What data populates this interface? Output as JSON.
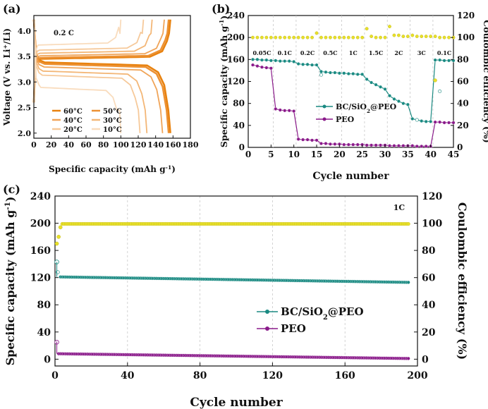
{
  "colors": {
    "bc": "#1a8a82",
    "peo": "#8a1a8a",
    "ce": "#e8e02a",
    "ce_edge": "#b8ae10",
    "grid": "#c8c8c8",
    "temps": {
      "60": "#e8820f",
      "50": "#ec9133",
      "40": "#f0a458",
      "30": "#f3b676",
      "20": "#f6c99a",
      "10": "#f9dcbd"
    }
  },
  "chart_data": [
    {
      "panel": "(a)",
      "type": "line",
      "xlabel": "Specific capacity (mAh g",
      "xlabel_sup": "-1",
      "xlabel_end": ")",
      "ylabel_parts": [
        "Voltage (V vs. Li",
        "+",
        "/Li)"
      ],
      "xlim": [
        0,
        180
      ],
      "ylim": [
        1.9,
        4.3
      ],
      "xticks": [
        "0",
        "20",
        "40",
        "60",
        "80",
        "100",
        "120",
        "140",
        "160",
        "180"
      ],
      "yticks": [
        "2.0",
        "2.5",
        "3.0",
        "3.5",
        "4.0"
      ],
      "annotation": "0.2 C",
      "legend": [
        "60°C",
        "50°C",
        "40°C",
        "30°C",
        "20°C",
        "10°C"
      ],
      "series": [
        {
          "name": "60°C",
          "charge_capacity": 157,
          "discharge_capacity": 157,
          "charge_plateau": 3.45,
          "discharge_plateau": 3.39
        },
        {
          "name": "50°C",
          "charge_capacity": 155,
          "discharge_capacity": 155,
          "charge_plateau": 3.47,
          "discharge_plateau": 3.36
        },
        {
          "name": "40°C",
          "charge_capacity": 150,
          "discharge_capacity": 148,
          "charge_plateau": 3.51,
          "discharge_plateau": 3.3
        },
        {
          "name": "30°C",
          "charge_capacity": 136,
          "discharge_capacity": 130,
          "charge_plateau": 3.56,
          "discharge_plateau": 3.22
        },
        {
          "name": "20°C",
          "charge_capacity": 126,
          "discharge_capacity": 122,
          "charge_plateau": 3.62,
          "discharge_plateau": 3.14
        },
        {
          "name": "10°C",
          "charge_capacity": 100,
          "discharge_capacity": 100,
          "charge_plateau": 3.72,
          "discharge_plateau": 2.9
        }
      ]
    },
    {
      "panel": "(b)",
      "type": "scatter",
      "xlabel": "Cycle number",
      "ylabel_parts": [
        "Specific capacity (mAh g",
        "-1",
        ")"
      ],
      "ylabel2": "Coulombic efficiency (%)",
      "xlim": [
        0,
        45
      ],
      "ylim": [
        0,
        240
      ],
      "ylim2": [
        0,
        120
      ],
      "xticks": [
        "0",
        "5",
        "10",
        "15",
        "20",
        "25",
        "30",
        "35",
        "40",
        "45"
      ],
      "yticks": [
        "0",
        "40",
        "80",
        "120",
        "160",
        "200",
        "240"
      ],
      "y2ticks": [
        "0",
        "20",
        "40",
        "60",
        "80",
        "100",
        "120"
      ],
      "rate_labels": [
        "0.05C",
        "0.1C",
        "0.2C",
        "0.5C",
        "1C",
        "1.5C",
        "2C",
        "3C",
        "0.1C"
      ],
      "legend": [
        "BC/SiO",
        "2",
        "@PEO",
        "PEO"
      ],
      "x": [
        1,
        2,
        3,
        4,
        5,
        6,
        7,
        8,
        9,
        10,
        11,
        12,
        13,
        14,
        15,
        16,
        17,
        18,
        19,
        20,
        21,
        22,
        23,
        24,
        25,
        26,
        27,
        28,
        29,
        30,
        31,
        32,
        33,
        34,
        35,
        36,
        37,
        38,
        39,
        40,
        41,
        42,
        43,
        44,
        45
      ],
      "series": [
        {
          "name": "BC/SiO2@PEO",
          "values": [
            160,
            160,
            159,
            159,
            158,
            158,
            157,
            157,
            157,
            156,
            152,
            151,
            151,
            150,
            150,
            138,
            137,
            136,
            136,
            135,
            135,
            134,
            134,
            133,
            133,
            124,
            118,
            114,
            110,
            106,
            94,
            88,
            84,
            80,
            78,
            52,
            50,
            48,
            47,
            47,
            159,
            159,
            158,
            158,
            158
          ]
        },
        {
          "name": "PEO",
          "values": [
            150,
            148,
            146,
            145,
            144,
            70,
            68,
            67,
            67,
            66,
            15,
            14,
            14,
            13,
            13,
            7,
            7,
            6,
            6,
            6,
            5,
            5,
            5,
            5,
            5,
            4,
            4,
            4,
            4,
            4,
            3,
            3,
            3,
            3,
            3,
            3,
            2,
            2,
            2,
            2,
            46,
            46,
            45,
            45,
            45
          ]
        },
        {
          "name": "Coulombic efficiency (%)",
          "axis": "right",
          "values": [
            100,
            100,
            100,
            100,
            100,
            100,
            100,
            100,
            100,
            100,
            100,
            100,
            100,
            100,
            104,
            100,
            100,
            100,
            100,
            100,
            100,
            100,
            100,
            100,
            100,
            108,
            101,
            100,
            100,
            100,
            110,
            102,
            102,
            101,
            101,
            102,
            101,
            101,
            101,
            101,
            101,
            100,
            100,
            100,
            100
          ]
        }
      ]
    },
    {
      "panel": "(c)",
      "type": "scatter",
      "xlabel": "Cycle number",
      "ylabel_parts": [
        "Specific capacity (mAh g",
        "-1",
        ")"
      ],
      "ylabel2": "Coulombic efficiency (%)",
      "xlim": [
        0,
        200
      ],
      "ylim": [
        -10,
        240
      ],
      "ylim2": [
        -5,
        120
      ],
      "xticks": [
        "0",
        "40",
        "80",
        "120",
        "160",
        "200"
      ],
      "yticks": [
        "0",
        "40",
        "80",
        "120",
        "160",
        "200",
        "240"
      ],
      "y2ticks": [
        "0",
        "20",
        "40",
        "60",
        "80",
        "100",
        "120"
      ],
      "annotation": "1C",
      "legend": [
        "BC/SiO",
        "2",
        "@PEO",
        "PEO"
      ],
      "series": [
        {
          "name": "BC/SiO2@PEO",
          "first": [
            1,
            143
          ],
          "start": [
            3,
            121
          ],
          "end": [
            195,
            113
          ]
        },
        {
          "name": "PEO",
          "first": [
            1,
            25
          ],
          "start": [
            2,
            8
          ],
          "end": [
            195,
            1
          ]
        },
        {
          "name": "Coulombic efficiency (%)",
          "axis": "right",
          "first_points": [
            [
              1,
              85
            ],
            [
              2,
              90
            ],
            [
              3,
              97
            ]
          ],
          "plateau": 99.5,
          "end_cycle": 195
        }
      ]
    }
  ]
}
